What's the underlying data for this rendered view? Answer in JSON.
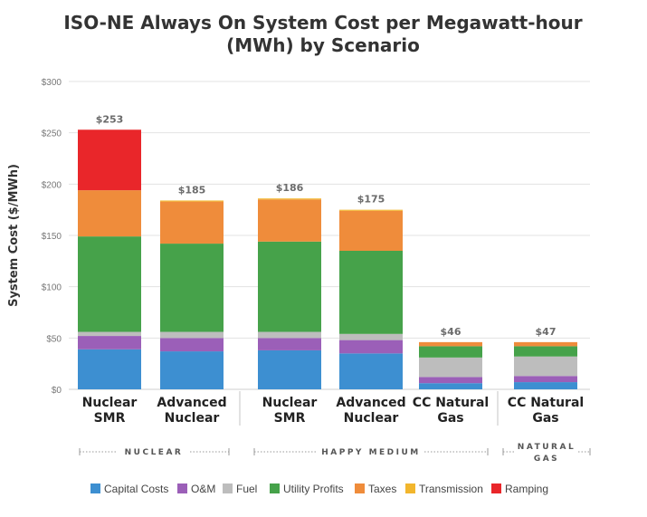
{
  "chart_data": {
    "type": "bar",
    "stacked": true,
    "title_lines": [
      "ISO-NE Always On System Cost per Megawatt-hour",
      "(MWh) by Scenario"
    ],
    "ylabel": "System Cost ($/MWh)",
    "ylim": [
      0,
      300
    ],
    "yticks": [
      0,
      50,
      100,
      150,
      200,
      250,
      300
    ],
    "ytick_labels": [
      "$0",
      "$50",
      "$100",
      "$150",
      "$200",
      "$250",
      "$300"
    ],
    "categories": [
      {
        "line1": "Nuclear",
        "line2": "SMR"
      },
      {
        "line1": "Advanced",
        "line2": "Nuclear"
      },
      {
        "line1": "Nuclear",
        "line2": "SMR"
      },
      {
        "line1": "Advanced",
        "line2": "Nuclear"
      },
      {
        "line1": "CC Natural",
        "line2": "Gas"
      },
      {
        "line1": "CC Natural",
        "line2": "Gas"
      }
    ],
    "totals": [
      "$253",
      "$185",
      "$186",
      "$175",
      "$46",
      "$47"
    ],
    "series": [
      {
        "name": "Capital Costs",
        "color": "#3d8fd1",
        "values": [
          39,
          37,
          38,
          35,
          6,
          7
        ]
      },
      {
        "name": "O&M",
        "color": "#9b5fb8",
        "values": [
          13,
          13,
          12,
          13,
          6,
          6
        ]
      },
      {
        "name": "Fuel",
        "color": "#bdbdbd",
        "values": [
          4,
          6,
          6,
          6,
          19,
          19
        ]
      },
      {
        "name": "Utility Profits",
        "color": "#46a24a",
        "values": [
          93,
          86,
          88,
          81,
          11,
          10
        ]
      },
      {
        "name": "Taxes",
        "color": "#ef8c3b",
        "values": [
          45,
          41,
          41,
          39,
          4,
          4
        ]
      },
      {
        "name": "Transmission",
        "color": "#f2b62d",
        "values": [
          0,
          1,
          1,
          1,
          0,
          0
        ]
      },
      {
        "name": "Ramping",
        "color": "#e9262a",
        "values": [
          59,
          0,
          0,
          0,
          0,
          0
        ]
      }
    ],
    "groups": [
      {
        "label": "NUCLEAR"
      },
      {
        "label": "HAPPY MEDIUM"
      },
      {
        "label_lines": [
          "NATURAL",
          "GAS"
        ]
      }
    ],
    "gridlines": true
  }
}
